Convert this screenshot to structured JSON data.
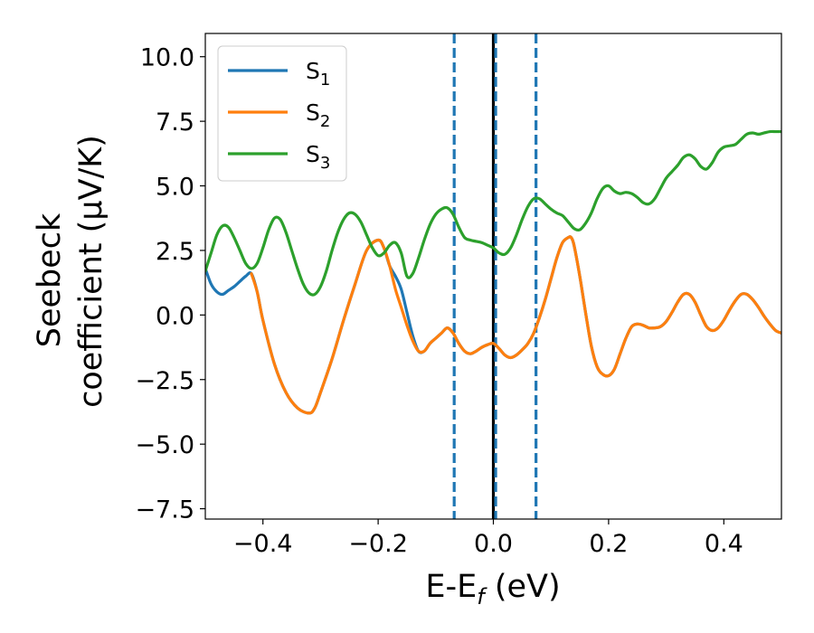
{
  "chart_data": {
    "type": "line",
    "xlabel": "E-E",
    "xlabel_sub": "f",
    "xlabel_unit": "(eV)",
    "ylabel_line1": "Seebeck",
    "ylabel_line2": "coefficient  (μV/K)",
    "xlim": [
      -0.5,
      0.5
    ],
    "ylim": [
      -7.9,
      10.9
    ],
    "xticks": [
      -0.4,
      -0.2,
      0.0,
      0.2,
      0.4
    ],
    "xtick_labels": [
      "−0.4",
      "−0.2",
      "0.0",
      "0.2",
      "0.4"
    ],
    "yticks": [
      -7.5,
      -5.0,
      -2.5,
      0.0,
      2.5,
      5.0,
      7.5,
      10.0
    ],
    "ytick_labels": [
      "−7.5",
      "−5.0",
      "−2.5",
      "0.0",
      "2.5",
      "5.0",
      "7.5",
      "10.0"
    ],
    "grid": false,
    "legend_position": "top-left",
    "vertical_lines": [
      {
        "x": -0.068,
        "style": "dashed",
        "color": "#1f77b4"
      },
      {
        "x": 0.0,
        "style": "solid",
        "color": "#000000"
      },
      {
        "x": 0.004,
        "style": "dashed",
        "color": "#1f77b4"
      },
      {
        "x": 0.074,
        "style": "dashed",
        "color": "#1f77b4"
      }
    ],
    "series": [
      {
        "name": "S",
        "subscript": "1",
        "color": "#1f77b4",
        "x": [
          -0.5,
          -0.49,
          -0.48,
          -0.47,
          -0.46,
          -0.45,
          -0.44,
          -0.43,
          -0.42,
          -0.41,
          -0.4,
          -0.38,
          -0.36,
          -0.34,
          -0.32,
          -0.31,
          -0.3,
          -0.28,
          -0.26,
          -0.24,
          -0.22,
          -0.2,
          -0.19,
          -0.18,
          -0.17,
          -0.16,
          -0.15,
          -0.14,
          -0.13,
          -0.12,
          -0.11,
          -0.1,
          -0.09,
          -0.08,
          -0.07,
          -0.06,
          -0.05,
          -0.04,
          -0.03,
          -0.02,
          -0.01,
          0.0,
          0.01,
          0.02,
          0.03,
          0.04,
          0.05,
          0.06,
          0.07,
          0.08,
          0.09,
          0.1,
          0.11,
          0.12,
          0.13,
          0.135,
          0.14,
          0.15,
          0.16,
          0.17,
          0.18,
          0.19,
          0.2,
          0.21,
          0.22,
          0.23,
          0.24,
          0.25,
          0.26,
          0.27,
          0.28,
          0.29,
          0.3,
          0.31,
          0.32,
          0.33,
          0.34,
          0.35,
          0.36,
          0.37,
          0.38,
          0.39,
          0.4,
          0.41,
          0.42,
          0.43,
          0.44,
          0.45,
          0.46,
          0.47,
          0.48,
          0.49,
          0.5
        ],
        "y": [
          1.8,
          1.2,
          0.9,
          0.8,
          0.95,
          1.1,
          1.3,
          1.5,
          1.6,
          0.9,
          -0.2,
          -1.9,
          -3.0,
          -3.6,
          -3.8,
          -3.6,
          -3.0,
          -1.7,
          -0.2,
          1.2,
          2.5,
          2.9,
          2.6,
          1.9,
          1.5,
          1.0,
          0.1,
          -0.8,
          -1.4,
          -1.4,
          -1.1,
          -0.9,
          -0.7,
          -0.5,
          -0.7,
          -1.1,
          -1.4,
          -1.5,
          -1.4,
          -1.25,
          -1.15,
          -1.1,
          -1.3,
          -1.55,
          -1.65,
          -1.55,
          -1.35,
          -1.1,
          -0.7,
          -0.1,
          0.6,
          1.4,
          2.2,
          2.8,
          3.0,
          3.0,
          2.7,
          1.5,
          0.1,
          -1.2,
          -2.0,
          -2.3,
          -2.35,
          -2.1,
          -1.5,
          -0.9,
          -0.45,
          -0.35,
          -0.4,
          -0.5,
          -0.5,
          -0.45,
          -0.25,
          0.1,
          0.5,
          0.8,
          0.8,
          0.5,
          0.0,
          -0.45,
          -0.6,
          -0.5,
          -0.2,
          0.2,
          0.55,
          0.8,
          0.8,
          0.6,
          0.3,
          -0.05,
          -0.35,
          -0.6,
          -0.7
        ]
      },
      {
        "name": "S",
        "subscript": "2",
        "color": "#ff7f0e",
        "x": [
          -0.5,
          -0.49,
          -0.48,
          -0.47,
          -0.46,
          -0.45,
          -0.44,
          -0.43,
          -0.42,
          -0.41,
          -0.4,
          -0.38,
          -0.36,
          -0.34,
          -0.32,
          -0.31,
          -0.3,
          -0.28,
          -0.26,
          -0.24,
          -0.22,
          -0.2,
          -0.19,
          -0.18,
          -0.17,
          -0.16,
          -0.15,
          -0.14,
          -0.13,
          -0.12,
          -0.11,
          -0.1,
          -0.09,
          -0.08,
          -0.07,
          -0.06,
          -0.05,
          -0.04,
          -0.03,
          -0.02,
          -0.01,
          0.0,
          0.01,
          0.02,
          0.03,
          0.04,
          0.05,
          0.06,
          0.07,
          0.08,
          0.09,
          0.1,
          0.11,
          0.12,
          0.13,
          0.135,
          0.14,
          0.15,
          0.16,
          0.17,
          0.18,
          0.19,
          0.2,
          0.21,
          0.22,
          0.23,
          0.24,
          0.25,
          0.26,
          0.27,
          0.28,
          0.29,
          0.3,
          0.31,
          0.32,
          0.33,
          0.34,
          0.35,
          0.36,
          0.37,
          0.38,
          0.39,
          0.4,
          0.41,
          0.42,
          0.43,
          0.44,
          0.45,
          0.46,
          0.47,
          0.48,
          0.49,
          0.5
        ],
        "y": [
          null,
          null,
          null,
          null,
          null,
          null,
          null,
          null,
          1.6,
          0.9,
          -0.2,
          -1.9,
          -3.0,
          -3.6,
          -3.8,
          -3.6,
          -3.0,
          -1.7,
          -0.2,
          1.2,
          2.5,
          2.9,
          2.6,
          1.9,
          1.0,
          0.3,
          -0.4,
          -1.0,
          -1.4,
          -1.4,
          -1.1,
          -0.9,
          -0.7,
          -0.5,
          -0.7,
          -1.1,
          -1.4,
          -1.5,
          -1.4,
          -1.25,
          -1.15,
          -1.1,
          -1.3,
          -1.55,
          -1.65,
          -1.55,
          -1.35,
          -1.1,
          -0.7,
          -0.1,
          0.6,
          1.4,
          2.2,
          2.8,
          3.0,
          3.0,
          2.7,
          1.5,
          0.1,
          -1.2,
          -2.0,
          -2.3,
          -2.35,
          -2.1,
          -1.5,
          -0.9,
          -0.45,
          -0.35,
          -0.4,
          -0.5,
          -0.5,
          -0.45,
          -0.25,
          0.1,
          0.5,
          0.8,
          0.8,
          0.5,
          0.0,
          -0.45,
          -0.6,
          -0.5,
          -0.2,
          0.2,
          0.55,
          0.8,
          0.8,
          0.6,
          0.3,
          -0.05,
          -0.35,
          -0.6,
          -0.7
        ]
      },
      {
        "name": "S",
        "subscript": "3",
        "color": "#2ca02c",
        "x": [
          -0.5,
          -0.49,
          -0.48,
          -0.47,
          -0.46,
          -0.45,
          -0.44,
          -0.43,
          -0.42,
          -0.41,
          -0.4,
          -0.39,
          -0.38,
          -0.37,
          -0.36,
          -0.35,
          -0.34,
          -0.33,
          -0.32,
          -0.31,
          -0.3,
          -0.29,
          -0.28,
          -0.27,
          -0.26,
          -0.25,
          -0.24,
          -0.23,
          -0.22,
          -0.21,
          -0.2,
          -0.19,
          -0.18,
          -0.17,
          -0.16,
          -0.15,
          -0.14,
          -0.13,
          -0.12,
          -0.11,
          -0.1,
          -0.09,
          -0.08,
          -0.07,
          -0.06,
          -0.05,
          -0.04,
          -0.03,
          -0.02,
          -0.01,
          0.0,
          0.01,
          0.02,
          0.03,
          0.04,
          0.05,
          0.06,
          0.07,
          0.08,
          0.09,
          0.1,
          0.11,
          0.12,
          0.13,
          0.14,
          0.15,
          0.16,
          0.17,
          0.18,
          0.19,
          0.2,
          0.21,
          0.22,
          0.23,
          0.24,
          0.25,
          0.26,
          0.27,
          0.28,
          0.29,
          0.3,
          0.31,
          0.32,
          0.33,
          0.34,
          0.35,
          0.36,
          0.37,
          0.38,
          0.39,
          0.4,
          0.41,
          0.42,
          0.43,
          0.44,
          0.45,
          0.46,
          0.47,
          0.48,
          0.49,
          0.5
        ],
        "y": [
          1.7,
          2.4,
          3.1,
          3.45,
          3.4,
          3.0,
          2.5,
          2.0,
          1.8,
          2.0,
          2.6,
          3.3,
          3.75,
          3.7,
          3.2,
          2.5,
          1.8,
          1.2,
          0.85,
          0.8,
          1.1,
          1.7,
          2.5,
          3.2,
          3.7,
          3.95,
          3.9,
          3.6,
          3.1,
          2.6,
          2.3,
          2.4,
          2.7,
          2.8,
          2.4,
          1.5,
          1.6,
          2.2,
          2.9,
          3.5,
          3.9,
          4.1,
          4.15,
          3.9,
          3.4,
          3.0,
          2.9,
          2.85,
          2.8,
          2.7,
          2.6,
          2.4,
          2.35,
          2.6,
          3.1,
          3.7,
          4.2,
          4.5,
          4.5,
          4.3,
          4.1,
          3.95,
          3.85,
          3.6,
          3.35,
          3.3,
          3.55,
          3.95,
          4.5,
          4.9,
          5.0,
          4.8,
          4.7,
          4.75,
          4.7,
          4.55,
          4.35,
          4.3,
          4.5,
          4.9,
          5.3,
          5.55,
          5.8,
          6.1,
          6.2,
          6.05,
          5.75,
          5.65,
          5.9,
          6.3,
          6.5,
          6.55,
          6.6,
          6.8,
          7.0,
          7.05,
          7.0,
          7.05,
          7.1,
          7.1,
          7.1
        ]
      }
    ]
  }
}
